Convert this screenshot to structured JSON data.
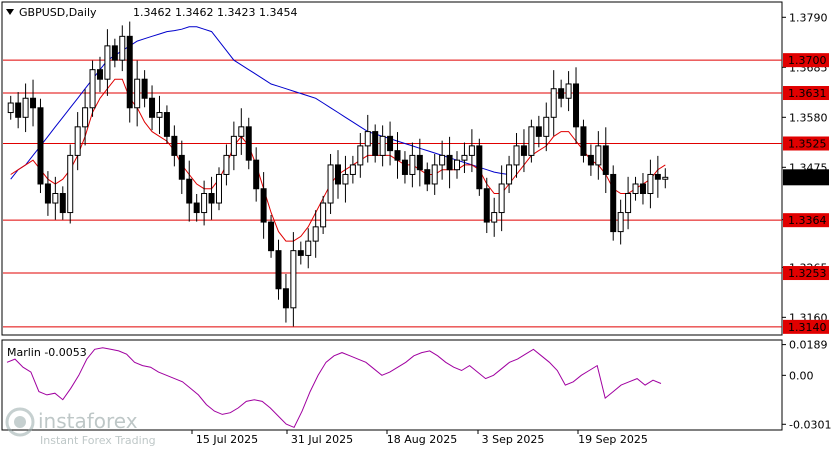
{
  "header": {
    "symbol_timeframe": "GBPUSD,Daily",
    "ohlc": "1.3462 1.3462 1.3423 1.3454"
  },
  "indicator": {
    "label": "Marlin -0.0053"
  },
  "watermark": {
    "brand": "instaforex",
    "tagline": "Instant Forex Trading"
  },
  "colors": {
    "bg": "#ffffff",
    "levels": "#e00000",
    "ma_fast": "#e00000",
    "ma_slow": "#0000cc",
    "oscillator": "#a000a0",
    "candle": "#000000",
    "price_tag_bg": "#000000"
  },
  "chart_data": [
    {
      "type": "candlestick",
      "title": "GBPUSD,Daily",
      "ylim": [
        1.3125,
        1.382
      ],
      "price_ticks": [
        "1.3790",
        "1.3685",
        "1.3580",
        "1.3475",
        "1.3365",
        "1.3265",
        "1.3160"
      ],
      "x_ticks": [
        "15 Jul 2025",
        "31 Jul 2025",
        "18 Aug 2025",
        "3 Sep 2025",
        "19 Sep 2025"
      ],
      "horizontal_levels": [
        1.37,
        1.3631,
        1.3525,
        1.3364,
        1.3253,
        1.314
      ],
      "current_price": 1.3454,
      "candles_close": [
        1.361,
        1.358,
        1.362,
        1.36,
        1.344,
        1.34,
        1.342,
        1.338,
        1.35,
        1.356,
        1.36,
        1.368,
        1.366,
        1.373,
        1.37,
        1.375,
        1.36,
        1.366,
        1.362,
        1.358,
        1.359,
        1.354,
        1.35,
        1.345,
        1.34,
        1.338,
        1.342,
        1.34,
        1.346,
        1.35,
        1.354,
        1.356,
        1.349,
        1.343,
        1.336,
        1.33,
        1.322,
        1.318,
        1.33,
        1.329,
        1.332,
        1.335,
        1.34,
        1.348,
        1.344,
        1.346,
        1.348,
        1.352,
        1.355,
        1.35,
        1.354,
        1.351,
        1.349,
        1.346,
        1.35,
        1.347,
        1.344,
        1.348,
        1.35,
        1.347,
        1.349,
        1.35,
        1.352,
        1.343,
        1.336,
        1.338,
        1.344,
        1.348,
        1.352,
        1.35,
        1.356,
        1.354,
        1.358,
        1.364,
        1.362,
        1.365,
        1.356,
        1.35,
        1.348,
        1.352,
        1.346,
        1.334,
        1.338,
        1.342,
        1.344,
        1.342,
        1.346,
        1.345,
        1.3454
      ],
      "ma_fast": [
        1.346,
        1.347,
        1.348,
        1.349,
        1.347,
        1.345,
        1.344,
        1.345,
        1.347,
        1.35,
        1.354,
        1.359,
        1.362,
        1.364,
        1.366,
        1.366,
        1.362,
        1.36,
        1.357,
        1.355,
        1.354,
        1.353,
        1.351,
        1.348,
        1.346,
        1.344,
        1.343,
        1.343,
        1.345,
        1.348,
        1.352,
        1.354,
        1.352,
        1.348,
        1.343,
        1.338,
        1.334,
        1.332,
        1.332,
        1.333,
        1.335,
        1.338,
        1.341,
        1.344,
        1.346,
        1.347,
        1.348,
        1.349,
        1.35,
        1.35,
        1.35,
        1.35,
        1.349,
        1.348,
        1.348,
        1.347,
        1.346,
        1.346,
        1.347,
        1.347,
        1.347,
        1.348,
        1.348,
        1.347,
        1.344,
        1.342,
        1.342,
        1.344,
        1.346,
        1.348,
        1.35,
        1.351,
        1.352,
        1.354,
        1.355,
        1.355,
        1.353,
        1.351,
        1.349,
        1.348,
        1.346,
        1.343,
        1.342,
        1.342,
        1.343,
        1.344,
        1.345,
        1.347,
        1.348
      ],
      "ma_slow": [
        1.345,
        1.347,
        1.348,
        1.35,
        1.352,
        1.354,
        1.356,
        1.358,
        1.36,
        1.362,
        1.364,
        1.366,
        1.368,
        1.37,
        1.371,
        1.372,
        1.373,
        1.374,
        1.3745,
        1.375,
        1.3755,
        1.376,
        1.3762,
        1.3765,
        1.377,
        1.377,
        1.3765,
        1.376,
        1.374,
        1.372,
        1.37,
        1.369,
        1.368,
        1.367,
        1.366,
        1.365,
        1.3645,
        1.364,
        1.3635,
        1.363,
        1.3625,
        1.362,
        1.361,
        1.36,
        1.359,
        1.358,
        1.357,
        1.356,
        1.355,
        1.3545,
        1.354,
        1.3535,
        1.353,
        1.3525,
        1.352,
        1.3515,
        1.351,
        1.3505,
        1.35,
        1.3495,
        1.349,
        1.3485,
        1.348,
        1.3475,
        1.347,
        1.3465,
        1.3462,
        1.346
      ]
    },
    {
      "type": "line",
      "title": "Marlin -0.0053",
      "ylim": [
        -0.033,
        0.0205
      ],
      "ticks": [
        "0.0189",
        "0.00",
        "-0.0301"
      ],
      "values": [
        0.008,
        0.01,
        0.005,
        0.002,
        -0.01,
        -0.012,
        -0.011,
        -0.015,
        -0.008,
        0.0,
        0.01,
        0.016,
        0.017,
        0.016,
        0.015,
        0.013,
        0.008,
        0.006,
        0.005,
        0.002,
        0.0,
        -0.002,
        -0.004,
        -0.008,
        -0.012,
        -0.018,
        -0.022,
        -0.024,
        -0.023,
        -0.02,
        -0.016,
        -0.015,
        -0.016,
        -0.02,
        -0.025,
        -0.03,
        -0.032,
        -0.022,
        -0.01,
        0.0,
        0.008,
        0.012,
        0.014,
        0.012,
        0.01,
        0.008,
        0.004,
        0.0,
        0.002,
        0.005,
        0.008,
        0.012,
        0.014,
        0.015,
        0.012,
        0.008,
        0.005,
        0.003,
        0.006,
        0.002,
        -0.002,
        0.0,
        0.004,
        0.008,
        0.01,
        0.013,
        0.016,
        0.012,
        0.008,
        0.003,
        -0.006,
        -0.004,
        0.0,
        0.003,
        0.006,
        -0.014,
        -0.01,
        -0.006,
        -0.004,
        -0.002,
        -0.006,
        -0.003,
        -0.005
      ]
    }
  ]
}
